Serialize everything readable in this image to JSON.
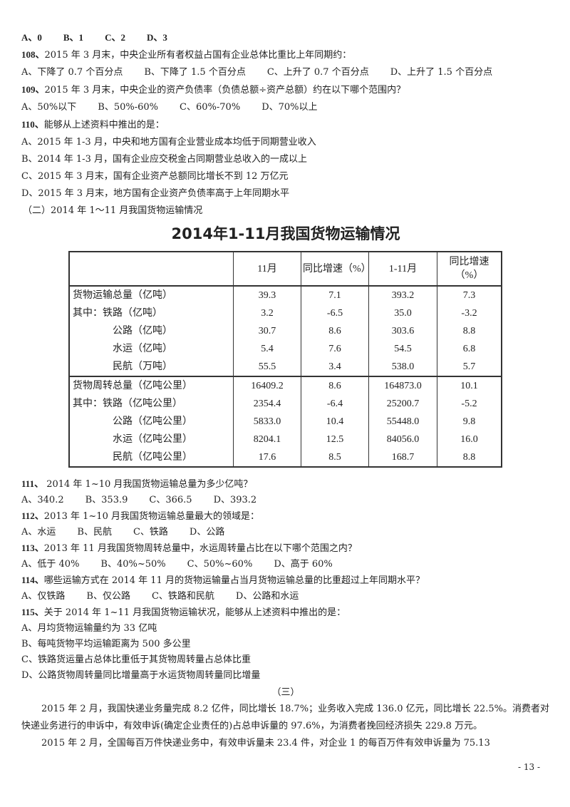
{
  "q107_options": [
    "A、0",
    "B、1",
    "C、2",
    "D、3"
  ],
  "q108": {
    "num": "108、",
    "text": "2015 年 3 月末，中央企业所有者权益占国有企业总体比重比上年同期约：",
    "options": [
      "A、下降了 0.7 个百分点",
      "B、下降了 1.5 个百分点",
      "C、上升了 0.7 个百分点",
      "D、上升了 1.5 个百分点"
    ]
  },
  "q109": {
    "num": "109、",
    "text": "2015 年 3 月末，中央企业的资产负债率（负债总额÷资产总额）约在以下哪个范围内？",
    "options": [
      "A、50%以下",
      "B、50%-60%",
      "C、60%-70%",
      "D、70%以上"
    ]
  },
  "q110": {
    "num": "110、",
    "text": "能够从上述资料中推出的是：",
    "options": [
      "A、2015 年 1-3 月，中央和地方国有企业营业成本均低于同期营业收入",
      "B、2014 年 1-3 月，国有企业应交税金占同期营业总收入的一成以上",
      "C、2015 年 3 月末，国有企业资产总额同比增长不到 12 万亿元",
      "D、2015 年 3 月末，地方国有企业资产负债率高于上年同期水平"
    ]
  },
  "section2_heading": "（二）2014 年 1～11 月我国货物运输情况",
  "table": {
    "title": "2014年1-11月我国货物运输情况",
    "headers": [
      "",
      "11月",
      "同比增速（%）",
      "1-11月",
      "同比增速（%）"
    ],
    "rows": [
      [
        "货物运输总量（亿吨）",
        "39.3",
        "7.1",
        "393.2",
        "7.3"
      ],
      [
        "其中：铁路（亿吨）",
        "3.2",
        "-6.5",
        "35.0",
        "-3.2"
      ],
      [
        "公路（亿吨）",
        "30.7",
        "8.6",
        "303.6",
        "8.8"
      ],
      [
        "水运（亿吨）",
        "5.4",
        "7.6",
        "54.5",
        "6.8"
      ],
      [
        "民航（万吨）",
        "55.5",
        "3.4",
        "538.0",
        "5.7"
      ],
      [
        "货物周转总量（亿吨公里）",
        "16409.2",
        "8.6",
        "164873.0",
        "10.1"
      ],
      [
        "其中：铁路（亿吨公里）",
        "2354.4",
        "-6.4",
        "25200.7",
        "-5.2"
      ],
      [
        "公路（亿吨公里）",
        "5833.0",
        "10.4",
        "55448.0",
        "9.8"
      ],
      [
        "水运（亿吨公里）",
        "8204.1",
        "12.5",
        "84056.0",
        "16.0"
      ],
      [
        "民航（亿吨公里）",
        "17.6",
        "8.5",
        "168.7",
        "8.8"
      ]
    ]
  },
  "q111": {
    "num": "111、",
    "text": "  2014 年 1~10 月我国货物运输总量为多少亿吨？",
    "options": [
      "A、340.2",
      "B、353.9",
      "C、366.5",
      "D、393.2"
    ]
  },
  "q112": {
    "num": "112、",
    "text": "2013 年 1~10 月我国货物运输总量最大的领域是：",
    "options": [
      "A、水运",
      "B、民航",
      "C、铁路",
      "D、公路"
    ]
  },
  "q113": {
    "num": "113、",
    "text": "2013 年 11 月我国货物周转总量中，水运周转量占比在以下哪个范围之内？",
    "options": [
      "A、低于 40%",
      "B、40%~50%",
      "C、50%~60%",
      "D、高于 60%"
    ]
  },
  "q114": {
    "num": "114、",
    "text": "哪些运输方式在 2014 年 11 月的货物运输量占当月货物运输总量的比重超过上年同期水平？",
    "options": [
      "A、仅铁路",
      "B、仅公路",
      "C、铁路和民航",
      "D、公路和水运"
    ]
  },
  "q115": {
    "num": "115、",
    "text": "关于 2014 年 1~11 月我国货物运输状况，能够从上述资料中推出的是：",
    "options": [
      "A、月均货物运输量约为 33 亿吨",
      "B、每吨货物平均运输距离为 500 多公里",
      "C、铁路货运量占总体比重低于其货物周转量占总体比重",
      "D、公路货物周转量同比增量高于水运货物周转量同比增量"
    ]
  },
  "section3_heading": "（三）",
  "para1": "2015 年 2 月，我国快递业务量完成 8.2 亿件，同比增长 18.7%；业务收入完成 136.0 亿元，同比增长 22.5%。消费者对快递业务进行的申诉中，有效申诉(确定企业责任的)占总申诉量的 97.6%，为消费者挽回经济损失 229.8 万元。",
  "para2": "2015 年 2 月，全国每百万件快递业务中，有效申诉量未 23.4 件，对企业 1 的每百万件有效申诉量为 75.13",
  "page_number": "- 13 -"
}
